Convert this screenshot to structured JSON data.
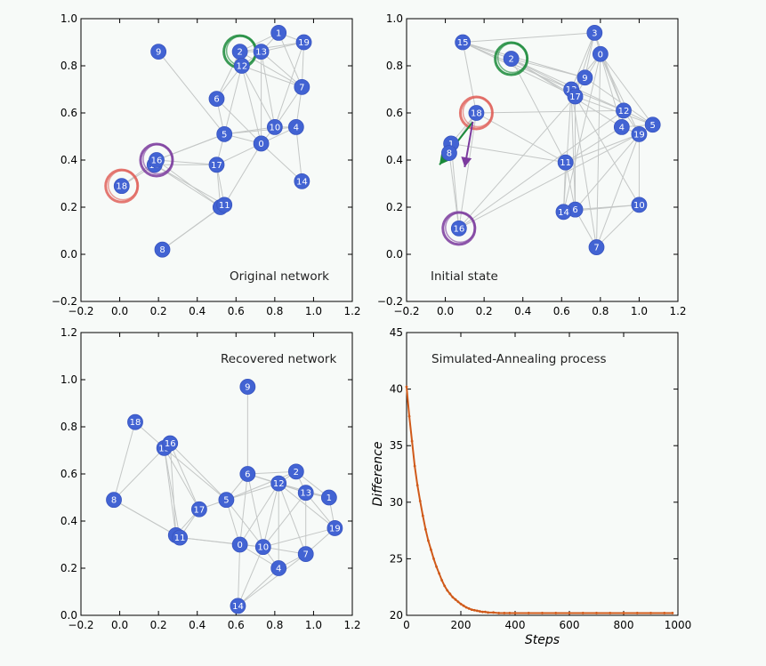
{
  "chart_data": [
    {
      "type": "network",
      "title": "Original network",
      "xlim": [
        -0.2,
        1.2
      ],
      "ylim": [
        -0.2,
        1.0
      ],
      "xticks": [
        "−0.2",
        "0.0",
        "0.2",
        "0.4",
        "0.6",
        "0.8",
        "1.0",
        "1.2"
      ],
      "yticks": [
        "−0.2",
        "0.0",
        "0.2",
        "0.4",
        "0.6",
        "0.8",
        "1.0"
      ],
      "nodes": [
        {
          "id": "0",
          "x": 0.73,
          "y": 0.47
        },
        {
          "id": "1",
          "x": 0.82,
          "y": 0.94
        },
        {
          "id": "2",
          "x": 0.62,
          "y": 0.86
        },
        {
          "id": "3",
          "x": 0.52,
          "y": 0.2
        },
        {
          "id": "4",
          "x": 0.91,
          "y": 0.54
        },
        {
          "id": "5",
          "x": 0.54,
          "y": 0.51
        },
        {
          "id": "6",
          "x": 0.5,
          "y": 0.66
        },
        {
          "id": "7",
          "x": 0.94,
          "y": 0.71
        },
        {
          "id": "8",
          "x": 0.22,
          "y": 0.02
        },
        {
          "id": "9",
          "x": 0.2,
          "y": 0.86
        },
        {
          "id": "10",
          "x": 0.8,
          "y": 0.54
        },
        {
          "id": "11",
          "x": 0.54,
          "y": 0.21
        },
        {
          "id": "12",
          "x": 0.63,
          "y": 0.8
        },
        {
          "id": "13",
          "x": 0.73,
          "y": 0.86
        },
        {
          "id": "14",
          "x": 0.94,
          "y": 0.31
        },
        {
          "id": "15",
          "x": 0.18,
          "y": 0.38
        },
        {
          "id": "16",
          "x": 0.19,
          "y": 0.4
        },
        {
          "id": "17",
          "x": 0.5,
          "y": 0.38
        },
        {
          "id": "18",
          "x": 0.01,
          "y": 0.29
        },
        {
          "id": "19",
          "x": 0.95,
          "y": 0.9
        }
      ],
      "edges": [
        [
          "9",
          "5"
        ],
        [
          "2",
          "12"
        ],
        [
          "2",
          "13"
        ],
        [
          "2",
          "1"
        ],
        [
          "2",
          "19"
        ],
        [
          "2",
          "6"
        ],
        [
          "2",
          "7"
        ],
        [
          "12",
          "13"
        ],
        [
          "12",
          "5"
        ],
        [
          "12",
          "0"
        ],
        [
          "12",
          "10"
        ],
        [
          "12",
          "7"
        ],
        [
          "13",
          "1"
        ],
        [
          "13",
          "19"
        ],
        [
          "13",
          "7"
        ],
        [
          "13",
          "10"
        ],
        [
          "13",
          "0"
        ],
        [
          "1",
          "19"
        ],
        [
          "1",
          "7"
        ],
        [
          "19",
          "7"
        ],
        [
          "19",
          "10"
        ],
        [
          "7",
          "10"
        ],
        [
          "7",
          "4"
        ],
        [
          "6",
          "5"
        ],
        [
          "6",
          "0"
        ],
        [
          "6",
          "12"
        ],
        [
          "5",
          "10"
        ],
        [
          "5",
          "0"
        ],
        [
          "5",
          "4"
        ],
        [
          "5",
          "17"
        ],
        [
          "5",
          "16"
        ],
        [
          "0",
          "10"
        ],
        [
          "0",
          "4"
        ],
        [
          "0",
          "14"
        ],
        [
          "0",
          "11"
        ],
        [
          "0",
          "17"
        ],
        [
          "10",
          "4"
        ],
        [
          "4",
          "14"
        ],
        [
          "16",
          "15"
        ],
        [
          "16",
          "17"
        ],
        [
          "16",
          "3"
        ],
        [
          "16",
          "5"
        ],
        [
          "15",
          "3"
        ],
        [
          "15",
          "11"
        ],
        [
          "15",
          "18"
        ],
        [
          "15",
          "17"
        ],
        [
          "18",
          "16"
        ],
        [
          "17",
          "3"
        ],
        [
          "17",
          "11"
        ],
        [
          "3",
          "8"
        ],
        [
          "11",
          "8"
        ],
        [
          "3",
          "11"
        ]
      ],
      "highlights": [
        {
          "node": "2",
          "color": "#1a8a3a"
        },
        {
          "node": "16",
          "color": "#7b3a9e"
        },
        {
          "node": "18",
          "color": "#e0605a"
        }
      ]
    },
    {
      "type": "network",
      "title": "Initial state",
      "xlim": [
        -0.2,
        1.2
      ],
      "ylim": [
        -0.2,
        1.0
      ],
      "xticks": [
        "−0.2",
        "0.0",
        "0.2",
        "0.4",
        "0.6",
        "0.8",
        "1.0",
        "1.2"
      ],
      "yticks": [
        "−0.2",
        "0.0",
        "0.2",
        "0.4",
        "0.6",
        "0.8",
        "1.0"
      ],
      "nodes": [
        {
          "id": "0",
          "x": 0.8,
          "y": 0.85
        },
        {
          "id": "1",
          "x": 0.03,
          "y": 0.47
        },
        {
          "id": "2",
          "x": 0.34,
          "y": 0.83
        },
        {
          "id": "3",
          "x": 0.77,
          "y": 0.94
        },
        {
          "id": "4",
          "x": 0.91,
          "y": 0.54
        },
        {
          "id": "5",
          "x": 1.07,
          "y": 0.55
        },
        {
          "id": "6",
          "x": 0.67,
          "y": 0.19
        },
        {
          "id": "7",
          "x": 0.78,
          "y": 0.03
        },
        {
          "id": "8",
          "x": 0.02,
          "y": 0.43
        },
        {
          "id": "9",
          "x": 0.72,
          "y": 0.75
        },
        {
          "id": "10",
          "x": 1.0,
          "y": 0.21
        },
        {
          "id": "11",
          "x": 0.62,
          "y": 0.39
        },
        {
          "id": "12",
          "x": 0.92,
          "y": 0.61
        },
        {
          "id": "13",
          "x": 0.65,
          "y": 0.7
        },
        {
          "id": "14",
          "x": 0.61,
          "y": 0.18
        },
        {
          "id": "15",
          "x": 0.09,
          "y": 0.9
        },
        {
          "id": "16",
          "x": 0.07,
          "y": 0.11
        },
        {
          "id": "17",
          "x": 0.67,
          "y": 0.67
        },
        {
          "id": "18",
          "x": 0.16,
          "y": 0.6
        },
        {
          "id": "19",
          "x": 1.0,
          "y": 0.51
        }
      ],
      "edges": [
        [
          "15",
          "3"
        ],
        [
          "15",
          "18"
        ],
        [
          "15",
          "2"
        ],
        [
          "15",
          "13"
        ],
        [
          "15",
          "9"
        ],
        [
          "15",
          "17"
        ],
        [
          "2",
          "13"
        ],
        [
          "2",
          "17"
        ],
        [
          "2",
          "12"
        ],
        [
          "2",
          "4"
        ],
        [
          "2",
          "11"
        ],
        [
          "2",
          "9"
        ],
        [
          "3",
          "0"
        ],
        [
          "3",
          "13"
        ],
        [
          "3",
          "17"
        ],
        [
          "3",
          "12"
        ],
        [
          "3",
          "9"
        ],
        [
          "0",
          "13"
        ],
        [
          "0",
          "17"
        ],
        [
          "0",
          "12"
        ],
        [
          "0",
          "4"
        ],
        [
          "0",
          "5"
        ],
        [
          "0",
          "19"
        ],
        [
          "0",
          "7"
        ],
        [
          "0",
          "14"
        ],
        [
          "9",
          "13"
        ],
        [
          "9",
          "5"
        ],
        [
          "13",
          "17"
        ],
        [
          "13",
          "12"
        ],
        [
          "13",
          "6"
        ],
        [
          "13",
          "14"
        ],
        [
          "13",
          "7"
        ],
        [
          "17",
          "6"
        ],
        [
          "17",
          "5"
        ],
        [
          "17",
          "10"
        ],
        [
          "12",
          "4"
        ],
        [
          "12",
          "5"
        ],
        [
          "12",
          "19"
        ],
        [
          "4",
          "5"
        ],
        [
          "4",
          "19"
        ],
        [
          "4",
          "11"
        ],
        [
          "5",
          "19"
        ],
        [
          "19",
          "11"
        ],
        [
          "19",
          "6"
        ],
        [
          "19",
          "16"
        ],
        [
          "19",
          "7"
        ],
        [
          "19",
          "10"
        ],
        [
          "18",
          "1"
        ],
        [
          "18",
          "8"
        ],
        [
          "18",
          "16"
        ],
        [
          "18",
          "11"
        ],
        [
          "18",
          "12"
        ],
        [
          "1",
          "16"
        ],
        [
          "1",
          "11"
        ],
        [
          "8",
          "16"
        ],
        [
          "16",
          "17"
        ],
        [
          "16",
          "12"
        ],
        [
          "11",
          "6"
        ],
        [
          "11",
          "14"
        ],
        [
          "14",
          "6"
        ],
        [
          "14",
          "10"
        ],
        [
          "6",
          "10"
        ],
        [
          "6",
          "7"
        ],
        [
          "10",
          "7"
        ]
      ],
      "highlights": [
        {
          "node": "2",
          "color": "#1a8a3a"
        },
        {
          "node": "16",
          "color": "#7b3a9e"
        },
        {
          "node": "18",
          "color": "#e0605a"
        }
      ],
      "arrows": [
        {
          "from": "18",
          "to": "1",
          "end": [
            -0.03,
            0.38
          ],
          "color": "#1a8a3a"
        },
        {
          "from": "18",
          "to": "8",
          "end": [
            0.1,
            0.37
          ],
          "color": "#7b3a9e"
        }
      ]
    },
    {
      "type": "network",
      "title": "Recovered network",
      "xlim": [
        -0.2,
        1.2
      ],
      "ylim": [
        0.0,
        1.2
      ],
      "xticks": [
        "−0.2",
        "0.0",
        "0.2",
        "0.4",
        "0.6",
        "0.8",
        "1.0",
        "1.2"
      ],
      "yticks": [
        "0.0",
        "0.2",
        "0.4",
        "0.6",
        "0.8",
        "1.0",
        "1.2"
      ],
      "nodes": [
        {
          "id": "0",
          "x": 0.62,
          "y": 0.3
        },
        {
          "id": "1",
          "x": 1.08,
          "y": 0.5
        },
        {
          "id": "2",
          "x": 0.91,
          "y": 0.61
        },
        {
          "id": "3",
          "x": 0.29,
          "y": 0.34
        },
        {
          "id": "4",
          "x": 0.82,
          "y": 0.2
        },
        {
          "id": "5",
          "x": 0.55,
          "y": 0.49
        },
        {
          "id": "6",
          "x": 0.66,
          "y": 0.6
        },
        {
          "id": "7",
          "x": 0.96,
          "y": 0.26
        },
        {
          "id": "8",
          "x": -0.03,
          "y": 0.49
        },
        {
          "id": "9",
          "x": 0.66,
          "y": 0.97
        },
        {
          "id": "10",
          "x": 0.74,
          "y": 0.29
        },
        {
          "id": "11",
          "x": 0.31,
          "y": 0.33
        },
        {
          "id": "12",
          "x": 0.82,
          "y": 0.56
        },
        {
          "id": "13",
          "x": 0.96,
          "y": 0.52
        },
        {
          "id": "14",
          "x": 0.61,
          "y": 0.04
        },
        {
          "id": "15",
          "x": 0.23,
          "y": 0.71
        },
        {
          "id": "16",
          "x": 0.26,
          "y": 0.73
        },
        {
          "id": "17",
          "x": 0.41,
          "y": 0.45
        },
        {
          "id": "18",
          "x": 0.08,
          "y": 0.82
        }
      ],
      "edges": [
        [
          "9",
          "6"
        ],
        [
          "18",
          "15"
        ],
        [
          "18",
          "8"
        ],
        [
          "8",
          "15"
        ],
        [
          "8",
          "3"
        ],
        [
          "8",
          "11"
        ],
        [
          "15",
          "16"
        ],
        [
          "15",
          "3"
        ],
        [
          "15",
          "11"
        ],
        [
          "15",
          "17"
        ],
        [
          "15",
          "5"
        ],
        [
          "16",
          "17"
        ],
        [
          "16",
          "5"
        ],
        [
          "16",
          "3"
        ],
        [
          "17",
          "5"
        ],
        [
          "17",
          "3"
        ],
        [
          "17",
          "11"
        ],
        [
          "3",
          "11"
        ],
        [
          "11",
          "0"
        ],
        [
          "11",
          "10"
        ],
        [
          "5",
          "6"
        ],
        [
          "5",
          "12"
        ],
        [
          "5",
          "0"
        ],
        [
          "5",
          "10"
        ],
        [
          "5",
          "2"
        ],
        [
          "6",
          "12"
        ],
        [
          "6",
          "0"
        ],
        [
          "6",
          "10"
        ],
        [
          "6",
          "2"
        ],
        [
          "6",
          "13"
        ],
        [
          "12",
          "2"
        ],
        [
          "12",
          "13"
        ],
        [
          "12",
          "1"
        ],
        [
          "12",
          "19"
        ],
        [
          "12",
          "10"
        ],
        [
          "12",
          "0"
        ],
        [
          "12",
          "4"
        ],
        [
          "12",
          "7"
        ],
        [
          "2",
          "13"
        ],
        [
          "2",
          "1"
        ],
        [
          "13",
          "1"
        ],
        [
          "13",
          "19"
        ],
        [
          "13",
          "7"
        ],
        [
          "13",
          "10"
        ],
        [
          "1",
          "19"
        ],
        [
          "19",
          "7"
        ],
        [
          "19",
          "10"
        ],
        [
          "0",
          "10"
        ],
        [
          "0",
          "14"
        ],
        [
          "0",
          "4"
        ],
        [
          "10",
          "4"
        ],
        [
          "10",
          "7"
        ],
        [
          "10",
          "14"
        ],
        [
          "4",
          "7"
        ],
        [
          "4",
          "14"
        ],
        [
          "7",
          "14"
        ]
      ],
      "extra_nodes": [
        {
          "id": "19",
          "x": 1.11,
          "y": 0.37
        }
      ]
    },
    {
      "type": "line",
      "title": "Simulated-Annealing process",
      "xlabel": "Steps",
      "ylabel": "Difference",
      "xlim": [
        0,
        1000
      ],
      "ylim": [
        20,
        45
      ],
      "xticks": [
        "0",
        "200",
        "400",
        "600",
        "800",
        "1000"
      ],
      "yticks": [
        "20",
        "25",
        "30",
        "35",
        "40",
        "45"
      ],
      "color": "#d05a1a",
      "series": [
        {
          "x": [
            0,
            10,
            20,
            30,
            40,
            50,
            60,
            70,
            80,
            90,
            100,
            110,
            120,
            130,
            140,
            150,
            160,
            170,
            180,
            190,
            200,
            210,
            220,
            230,
            240,
            250,
            260,
            270,
            280,
            290,
            300,
            320,
            340,
            360,
            380,
            400,
            450,
            500,
            550,
            600,
            650,
            700,
            750,
            800,
            850,
            900,
            950,
            980
          ],
          "values": [
            40.2,
            37.6,
            35.4,
            33.2,
            31.5,
            30.1,
            28.8,
            27.6,
            26.6,
            25.8,
            25.0,
            24.3,
            23.7,
            23.1,
            22.6,
            22.2,
            21.9,
            21.6,
            21.4,
            21.2,
            21.0,
            20.85,
            20.7,
            20.6,
            20.5,
            20.45,
            20.4,
            20.35,
            20.3,
            20.3,
            20.25,
            20.25,
            20.2,
            20.2,
            20.2,
            20.2,
            20.2,
            20.2,
            20.2,
            20.2,
            20.2,
            20.2,
            20.2,
            20.2,
            20.2,
            20.2,
            20.2,
            20.2
          ]
        }
      ]
    }
  ]
}
